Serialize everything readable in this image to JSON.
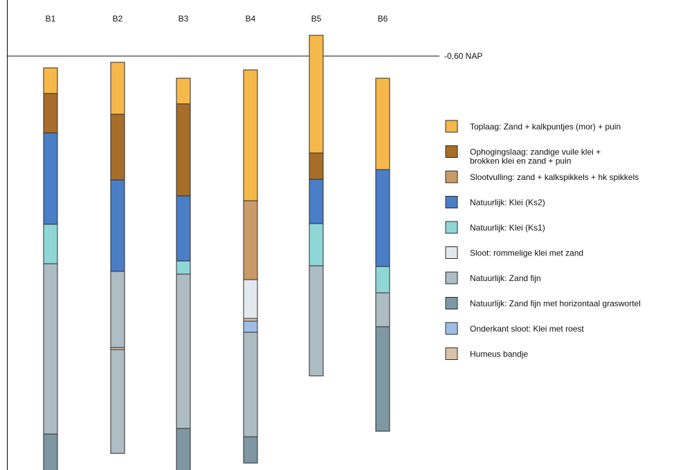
{
  "diagram": {
    "reference_label": "-0,60 NAP",
    "layer_types": {
      "toplaag": {
        "label": "Toplaag: Zand + kalkpuntjes (mor) + puin",
        "color": "#F7B84B"
      },
      "ophoging": {
        "label": "Ophogingslaag: zandige vuile klei +\nbrokken klei en zand + puin",
        "color": "#A66E2A"
      },
      "slootvul": {
        "label": "Slootvulling: zand + kalkspikkels + hk spikkels",
        "color": "#C99A6A"
      },
      "ks2": {
        "label": "Natuurlijk: Klei (Ks2)",
        "color": "#4A7EC6"
      },
      "ks1": {
        "label": "Natuurlijk: Klei (Ks1)",
        "color": "#8ED7D6"
      },
      "sloot": {
        "label": "Sloot: rommelige klei met zand",
        "color": "#E3E8EE"
      },
      "zandfijn": {
        "label": "Natuurlijk: Zand fijn",
        "color": "#AEBCC3"
      },
      "zandfijn_gw": {
        "label": "Natuurlijk: Zand fijn met horizontaal graswortel",
        "color": "#7E97A2"
      },
      "onderkant": {
        "label": "Onderkant sloot: Klei met roest",
        "color": "#9EBEE6"
      },
      "humeus": {
        "label": "Humeus bandje",
        "color": "#D9C2AA"
      }
    },
    "legend_order": [
      "toplaag",
      "ophoging",
      "slootvul",
      "ks2",
      "ks1",
      "sloot",
      "zandfijn",
      "zandfijn_gw",
      "onderkant",
      "humeus"
    ],
    "boreholes": [
      {
        "name": "B1",
        "layers": [
          {
            "type": "toplaag",
            "d": 37
          },
          {
            "type": "ophoging",
            "d": 57
          },
          {
            "type": "ks2",
            "d": 132
          },
          {
            "type": "ks1",
            "d": 57
          },
          {
            "type": "zandfijn",
            "d": 246
          },
          {
            "type": "zandfijn_gw",
            "d": 60
          }
        ]
      },
      {
        "name": "B2",
        "layers": [
          {
            "type": "toplaag",
            "d": 75
          },
          {
            "type": "ophoging",
            "d": 95
          },
          {
            "type": "ks2",
            "d": 132
          },
          {
            "type": "zandfijn",
            "d": 110
          },
          {
            "type": "humeus",
            "d": 3
          },
          {
            "type": "zandfijn",
            "d": 150
          }
        ]
      },
      {
        "name": "B3",
        "layers": [
          {
            "type": "toplaag",
            "d": 37
          },
          {
            "type": "ophoging",
            "d": 133
          },
          {
            "type": "ks2",
            "d": 94
          },
          {
            "type": "ks1",
            "d": 19
          },
          {
            "type": "zandfijn",
            "d": 223
          },
          {
            "type": "zandfijn_gw",
            "d": 63
          }
        ]
      },
      {
        "name": "B4",
        "layers": [
          {
            "type": "toplaag",
            "d": 189
          },
          {
            "type": "slootvul",
            "d": 114
          },
          {
            "type": "sloot",
            "d": 56
          },
          {
            "type": "humeus",
            "d": 4
          },
          {
            "type": "onderkant",
            "d": 16
          },
          {
            "type": "zandfijn",
            "d": 151
          },
          {
            "type": "zandfijn_gw",
            "d": 38
          }
        ]
      },
      {
        "name": "B5",
        "layers": [
          {
            "type": "toplaag",
            "d": 170
          },
          {
            "type": "ophoging",
            "d": 38
          },
          {
            "type": "ks2",
            "d": 64
          },
          {
            "type": "ks1",
            "d": 61
          },
          {
            "type": "zandfijn",
            "d": 159
          }
        ]
      },
      {
        "name": "B6",
        "layers": [
          {
            "type": "toplaag",
            "d": 132
          },
          {
            "type": "ks2",
            "d": 140
          },
          {
            "type": "ks1",
            "d": 38
          },
          {
            "type": "zandfijn",
            "d": 49
          },
          {
            "type": "zandfijn_gw",
            "d": 151
          }
        ]
      }
    ]
  }
}
